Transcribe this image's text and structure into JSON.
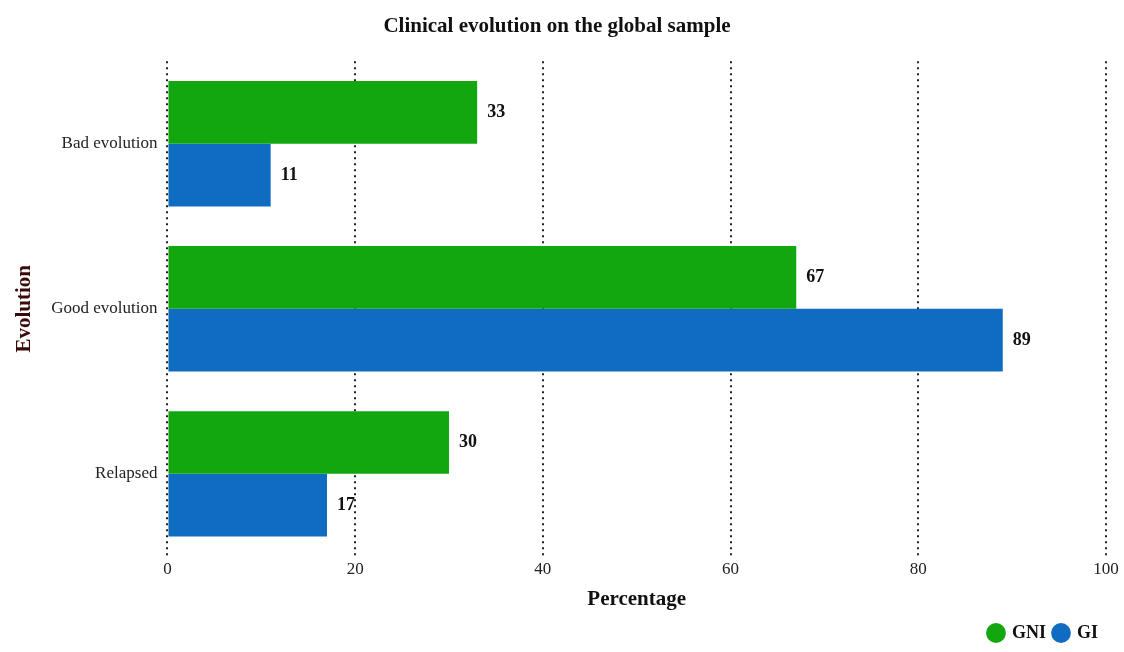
{
  "chart_data": {
    "type": "bar",
    "orientation": "horizontal",
    "title": "Clinical evolution on the global sample",
    "xlabel": "Percentage",
    "ylabel": "Evolution",
    "categories": [
      "Bad evolution",
      "Good evolution",
      "Relapsed"
    ],
    "series": [
      {
        "name": "GNI",
        "color": "#12a60f",
        "values": [
          33,
          67,
          30
        ]
      },
      {
        "name": "GI",
        "color": "#0f6cc0",
        "values": [
          11,
          89,
          17
        ]
      }
    ],
    "xlim": [
      0,
      100
    ],
    "xticks": [
      0,
      20,
      40,
      60,
      80,
      100
    ],
    "grid": "x",
    "legend": "bottom right",
    "data_labels": true
  }
}
